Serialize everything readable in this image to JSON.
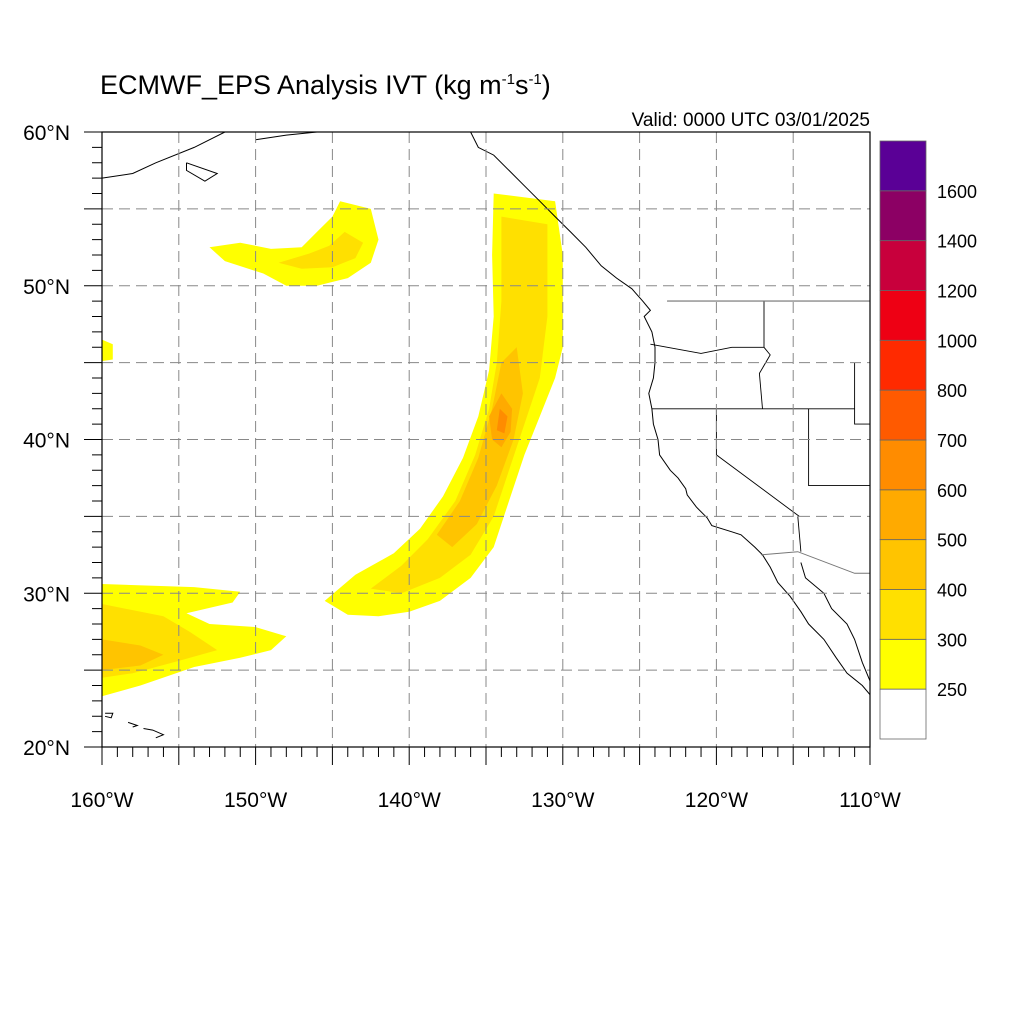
{
  "title": {
    "prefix": "ECMWF_EPS Analysis IVT (kg m",
    "exp1": "-1",
    "mid": "s",
    "exp2": "-1",
    "suffix": ")"
  },
  "valid_label": "Valid: 0000 UTC 03/01/2025",
  "map": {
    "lon_range": [
      -160,
      -110
    ],
    "lat_range": [
      20,
      60
    ],
    "grid": "dashed",
    "lon_ticks": [
      {
        "value": -160,
        "label": "160°W"
      },
      {
        "value": -150,
        "label": "150°W"
      },
      {
        "value": -140,
        "label": "140°W"
      },
      {
        "value": -130,
        "label": "130°W"
      },
      {
        "value": -120,
        "label": "120°W"
      },
      {
        "value": -110,
        "label": "110°W"
      }
    ],
    "lat_ticks": [
      {
        "value": 60,
        "label": "60°N"
      },
      {
        "value": 50,
        "label": "50°N"
      },
      {
        "value": 40,
        "label": "40°N"
      },
      {
        "value": 30,
        "label": "30°N"
      },
      {
        "value": 20,
        "label": "20°N"
      }
    ]
  },
  "colorbar": {
    "levels": [
      "250",
      "300",
      "400",
      "500",
      "600",
      "700",
      "800",
      "1000",
      "1200",
      "1400",
      "1600"
    ],
    "colors": [
      "#ffffff",
      "#ffff00",
      "#ffe000",
      "#ffc400",
      "#ffaa00",
      "#ff8c00",
      "#ff5a00",
      "#ff2a00",
      "#ee0014",
      "#c8003c",
      "#8c0064",
      "#5a0096"
    ]
  },
  "ivt_regions": [
    {
      "name": "main-atmospheric-river",
      "level": 1,
      "polygon": [
        [
          -134.5,
          56
        ],
        [
          -130.5,
          55.5
        ],
        [
          -130,
          52
        ],
        [
          -130,
          46
        ],
        [
          -130.5,
          44
        ],
        [
          -131.5,
          41.5
        ],
        [
          -132.5,
          39
        ],
        [
          -133.5,
          36
        ],
        [
          -134.5,
          33
        ],
        [
          -136,
          31
        ],
        [
          -138,
          29.5
        ],
        [
          -140,
          28.8
        ],
        [
          -142,
          28.5
        ],
        [
          -144,
          28.6
        ],
        [
          -145.5,
          29.5
        ],
        [
          -143.5,
          31.2
        ],
        [
          -141,
          32.6
        ],
        [
          -139.3,
          34.2
        ],
        [
          -137.8,
          36.3
        ],
        [
          -136.5,
          38.8
        ],
        [
          -135.5,
          41.5
        ],
        [
          -134.8,
          44.5
        ],
        [
          -134.5,
          48
        ],
        [
          -134.6,
          52
        ]
      ]
    },
    {
      "name": "main-ar-core",
      "level": 2,
      "polygon": [
        [
          -134,
          54.5
        ],
        [
          -131,
          54
        ],
        [
          -131,
          48
        ],
        [
          -131.5,
          44
        ],
        [
          -132.5,
          41
        ],
        [
          -133.5,
          38
        ],
        [
          -134.5,
          35
        ],
        [
          -136,
          32.5
        ],
        [
          -138,
          31
        ],
        [
          -140.5,
          30
        ],
        [
          -142.5,
          30.3
        ],
        [
          -140.5,
          31.8
        ],
        [
          -138.8,
          33.5
        ],
        [
          -137,
          36
        ],
        [
          -135.7,
          39
        ],
        [
          -134.8,
          42
        ],
        [
          -134.3,
          45
        ],
        [
          -134,
          49
        ]
      ]
    },
    {
      "name": "main-ar-inner",
      "level": 3,
      "polygon": [
        [
          -133,
          46
        ],
        [
          -132.6,
          43
        ],
        [
          -133.2,
          40
        ],
        [
          -134.3,
          37
        ],
        [
          -135.6,
          34.5
        ],
        [
          -137.2,
          33
        ],
        [
          -138.2,
          33.8
        ],
        [
          -136.7,
          36
        ],
        [
          -135.5,
          38.8
        ],
        [
          -134.6,
          42
        ],
        [
          -134,
          45
        ]
      ]
    },
    {
      "name": "main-ar-peak",
      "level": 4,
      "polygon": [
        [
          -134,
          43
        ],
        [
          -133.3,
          42
        ],
        [
          -133.4,
          40.5
        ],
        [
          -134,
          39.5
        ],
        [
          -134.6,
          40
        ],
        [
          -134.8,
          41.5
        ]
      ]
    },
    {
      "name": "main-ar-max",
      "level": 5,
      "polygon": [
        [
          -134.1,
          42
        ],
        [
          -133.6,
          41.5
        ],
        [
          -133.8,
          40.4
        ],
        [
          -134.3,
          40.6
        ]
      ]
    },
    {
      "name": "north-pacific-arc",
      "level": 1,
      "polygon": [
        [
          -144.5,
          55.5
        ],
        [
          -142.5,
          55
        ],
        [
          -142,
          53
        ],
        [
          -142.5,
          51.5
        ],
        [
          -144,
          50.5
        ],
        [
          -146,
          50
        ],
        [
          -148,
          50
        ],
        [
          -149.5,
          50.8
        ],
        [
          -152,
          51.6
        ],
        [
          -153,
          52.5
        ],
        [
          -151,
          52.8
        ],
        [
          -149,
          52.4
        ],
        [
          -147,
          52.5
        ],
        [
          -146,
          53.5
        ],
        [
          -145,
          54.5
        ]
      ]
    },
    {
      "name": "north-pacific-arc-core",
      "level": 2,
      "polygon": [
        [
          -144.2,
          53.5
        ],
        [
          -143,
          52.8
        ],
        [
          -143.5,
          51.8
        ],
        [
          -145,
          51.2
        ],
        [
          -147,
          51.1
        ],
        [
          -148.5,
          51.5
        ],
        [
          -146.5,
          52.1
        ],
        [
          -145.2,
          52.6
        ]
      ]
    },
    {
      "name": "subtropical-plume",
      "level": 1,
      "polygon": [
        [
          -160,
          30.6
        ],
        [
          -154,
          30.4
        ],
        [
          -151,
          30.1
        ],
        [
          -151.5,
          29.4
        ],
        [
          -154.5,
          28.7
        ],
        [
          -153,
          28
        ],
        [
          -150,
          27.8
        ],
        [
          -148,
          27.2
        ],
        [
          -149,
          26.3
        ],
        [
          -151,
          25.8
        ],
        [
          -154,
          25.2
        ],
        [
          -157.5,
          24
        ],
        [
          -160,
          23.3
        ]
      ]
    },
    {
      "name": "subtropical-plume-core",
      "level": 2,
      "polygon": [
        [
          -160,
          29.3
        ],
        [
          -156,
          28.5
        ],
        [
          -154.3,
          27.5
        ],
        [
          -152.5,
          26.3
        ],
        [
          -155,
          25.6
        ],
        [
          -158,
          24.8
        ],
        [
          -160,
          24.5
        ]
      ]
    },
    {
      "name": "subtropical-plume-inner",
      "level": 3,
      "polygon": [
        [
          -160,
          27
        ],
        [
          -157.5,
          26.6
        ],
        [
          -156,
          26
        ],
        [
          -157.5,
          25.3
        ],
        [
          -160,
          25
        ]
      ]
    },
    {
      "name": "hawaii-patch",
      "level": 1,
      "polygon": [
        [
          -160,
          46.5
        ],
        [
          -159.3,
          46.2
        ],
        [
          -159.3,
          45.2
        ],
        [
          -160,
          45.1
        ]
      ]
    }
  ]
}
